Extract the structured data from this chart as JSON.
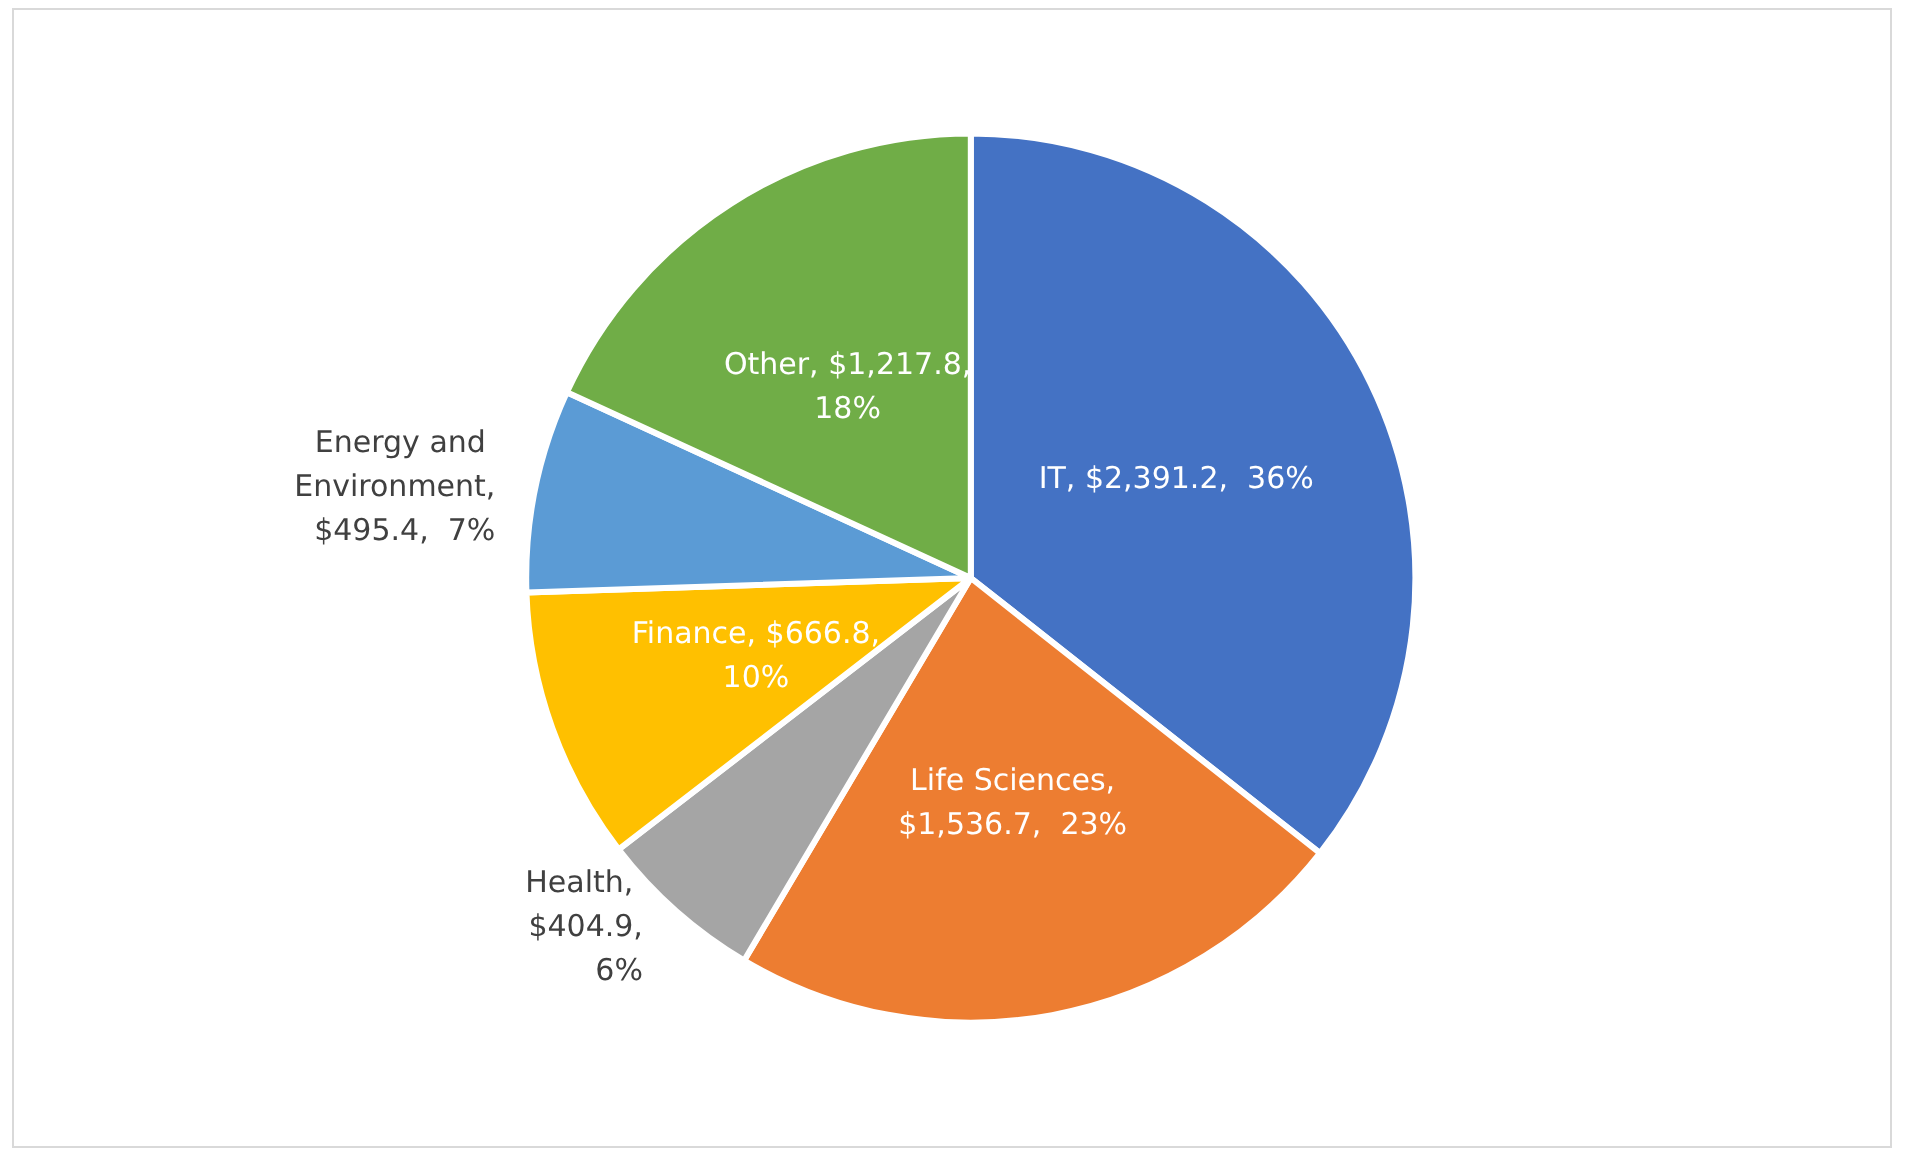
{
  "chart_data": {
    "type": "pie",
    "categories": [
      "IT",
      "Life Sciences",
      "Health",
      "Finance",
      "Energy and Environment",
      "Other"
    ],
    "values": [
      2391.2,
      1536.7,
      404.9,
      666.8,
      495.4,
      1217.8
    ],
    "colors": [
      "#4472c4",
      "#ed7d31",
      "#a5a5a5",
      "#ffc000",
      "#5b9bd5",
      "#70ad47"
    ],
    "value_labels": [
      ", $2,391.2,  36%",
      ",\n$1,536.7,  23%",
      ", $404.9,\n6%",
      ", $666.8,\n10%",
      ",\n$495.4,  7%",
      ", $1,217.8,\n18%"
    ],
    "legend": false
  }
}
